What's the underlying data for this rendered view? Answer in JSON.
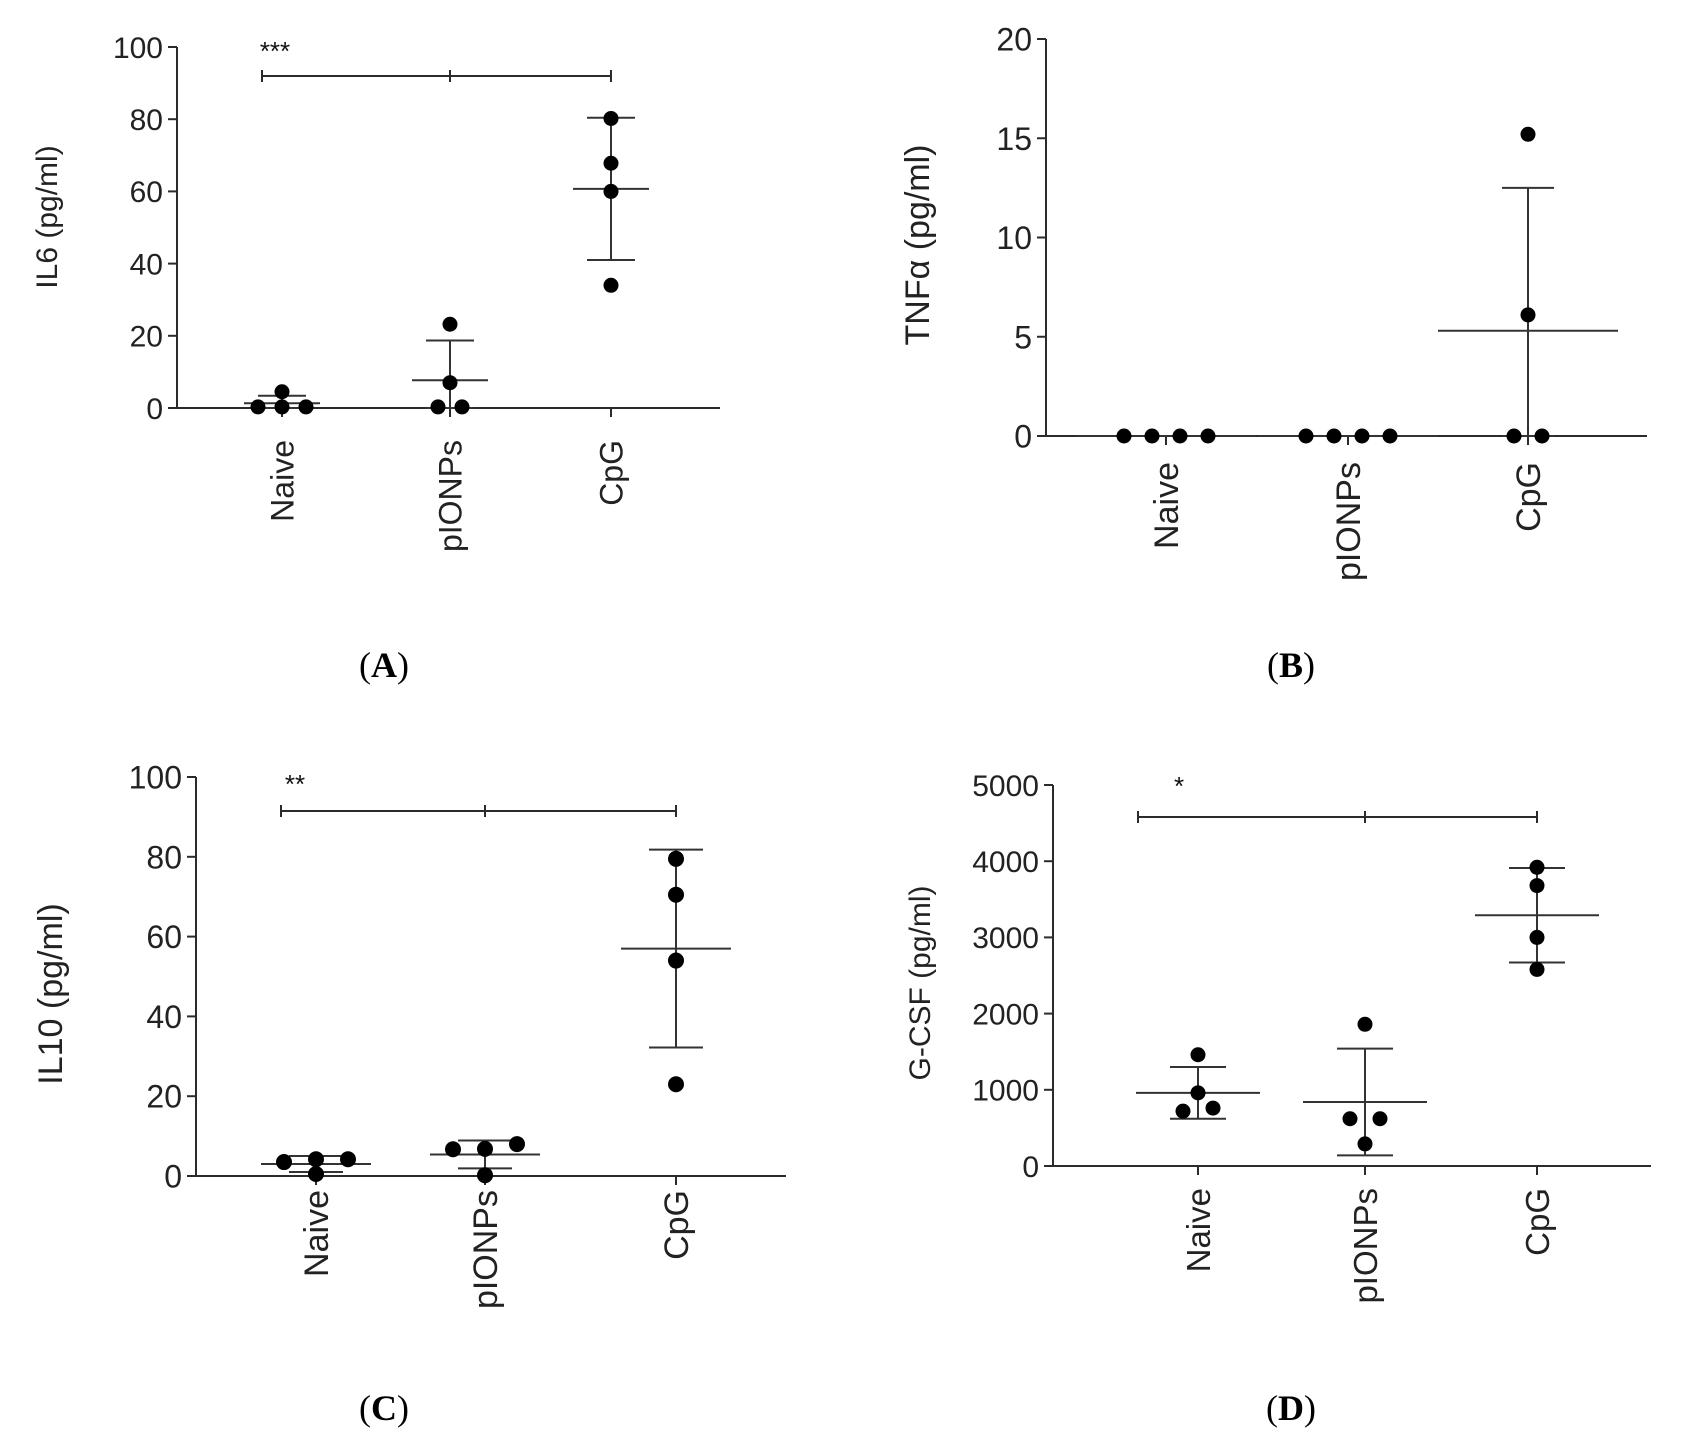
{
  "figure": {
    "panel_letters": [
      "A",
      "B",
      "C",
      "D"
    ]
  },
  "colors": {
    "axis": "#2b2b2b",
    "point": "#000000",
    "error_bar": "#333333"
  },
  "chart_data": [
    {
      "type": "scatter",
      "panel": "A",
      "ylabel": "IL6 (pg/ml)",
      "categories": [
        "Naive",
        "pIONPs",
        "CpG"
      ],
      "ylim": [
        0,
        100
      ],
      "yticks": [
        0,
        20,
        40,
        60,
        80,
        100
      ],
      "points": [
        [
          0.3,
          0.3,
          0.3,
          4.5
        ],
        [
          0.3,
          0.3,
          7.0,
          23.2
        ],
        [
          34.0,
          60.0,
          67.8,
          80.2
        ]
      ],
      "mean": [
        1.3,
        7.7,
        60.7
      ],
      "sd": [
        2.1,
        11.0,
        19.7
      ],
      "significance": {
        "label": "***",
        "from": 0,
        "to": 2
      }
    },
    {
      "type": "scatter",
      "panel": "B",
      "ylabel": "TNFα (pg/ml)",
      "categories": [
        "Naive",
        "pIONPs",
        "CpG"
      ],
      "ylim": [
        0,
        20
      ],
      "yticks": [
        0,
        5,
        10,
        15,
        20
      ],
      "points": [
        [
          0,
          0,
          0,
          0
        ],
        [
          0,
          0,
          0,
          0
        ],
        [
          0,
          0,
          6.1,
          15.2
        ]
      ],
      "mean": [
        0,
        0,
        5.3
      ],
      "sd": [
        0,
        0,
        7.2
      ],
      "significance": null
    },
    {
      "type": "scatter",
      "panel": "C",
      "ylabel": "IL10 (pg/ml)",
      "categories": [
        "Naive",
        "pIONPs",
        "CpG"
      ],
      "ylim": [
        0,
        100
      ],
      "yticks": [
        0,
        20,
        40,
        60,
        80,
        100
      ],
      "points": [
        [
          0.5,
          3.5,
          4.2,
          4.2
        ],
        [
          0.2,
          6.7,
          6.8,
          8.0
        ],
        [
          23.0,
          54.0,
          70.5,
          79.5
        ]
      ],
      "mean": [
        3.0,
        5.4,
        57.0
      ],
      "sd": [
        2.0,
        3.5,
        24.8
      ],
      "significance": {
        "label": "**",
        "from": 0,
        "to": 2
      }
    },
    {
      "type": "scatter",
      "panel": "D",
      "ylabel": "G-CSF (pg/ml)",
      "categories": [
        "Naive",
        "pIONPs",
        "CpG"
      ],
      "ylim": [
        0,
        5000
      ],
      "yticks": [
        0,
        1000,
        2000,
        3000,
        4000,
        5000
      ],
      "points": [
        [
          720,
          760,
          960,
          1460
        ],
        [
          290,
          620,
          620,
          1860
        ],
        [
          2580,
          3000,
          3680,
          3920
        ]
      ],
      "mean": [
        960,
        840,
        3290
      ],
      "sd": [
        340,
        700,
        620
      ],
      "significance": {
        "label": "*",
        "from": 0,
        "to": 2
      }
    }
  ]
}
